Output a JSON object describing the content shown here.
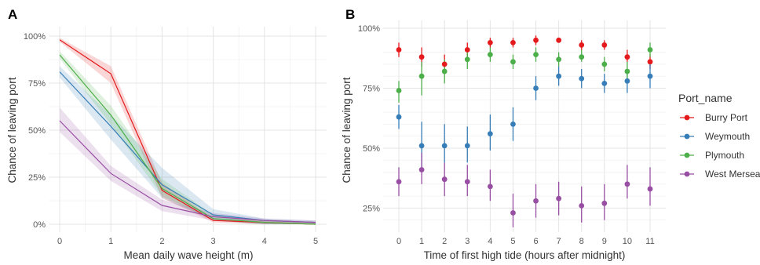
{
  "chart_data": [
    {
      "panel_label": "A",
      "type": "line",
      "xlabel": "Mean daily wave height (m)",
      "ylabel": "Chance of leaving port",
      "xlim": [
        0,
        5
      ],
      "ylim": [
        0,
        1
      ],
      "x_ticks": [
        "0",
        "1",
        "2",
        "3",
        "4",
        "5"
      ],
      "y_ticks": [
        "0%",
        "25%",
        "50%",
        "75%",
        "100%"
      ],
      "x": [
        0,
        1,
        2,
        3,
        4,
        5
      ],
      "grid": true,
      "ribbons": true,
      "series": [
        {
          "name": "Burry Port",
          "color": "#E41A1C",
          "values": [
            0.98,
            0.8,
            0.18,
            0.02,
            0.01,
            0.0
          ],
          "lower": [
            0.97,
            0.75,
            0.14,
            0.01,
            0.0,
            0.0
          ],
          "upper": [
            0.99,
            0.84,
            0.22,
            0.03,
            0.02,
            0.01
          ]
        },
        {
          "name": "Weymouth",
          "color": "#377EB8",
          "values": [
            0.81,
            0.52,
            0.21,
            0.05,
            0.02,
            0.01
          ],
          "lower": [
            0.78,
            0.45,
            0.14,
            0.02,
            0.0,
            0.0
          ],
          "upper": [
            0.84,
            0.58,
            0.3,
            0.08,
            0.03,
            0.02
          ]
        },
        {
          "name": "Plymouth",
          "color": "#4DAF4A",
          "values": [
            0.9,
            0.58,
            0.19,
            0.03,
            0.01,
            0.0
          ],
          "lower": [
            0.88,
            0.53,
            0.15,
            0.02,
            0.0,
            0.0
          ],
          "upper": [
            0.92,
            0.63,
            0.24,
            0.05,
            0.02,
            0.01
          ]
        },
        {
          "name": "West Mersea",
          "color": "#984EA3",
          "values": [
            0.55,
            0.27,
            0.1,
            0.04,
            0.02,
            0.01
          ],
          "lower": [
            0.49,
            0.23,
            0.07,
            0.02,
            0.0,
            0.0
          ],
          "upper": [
            0.62,
            0.31,
            0.13,
            0.06,
            0.03,
            0.02
          ]
        }
      ]
    },
    {
      "panel_label": "B",
      "type": "scatter",
      "xlabel": "Time of first high tide (hours after midnight)",
      "ylabel": "Chance of leaving port",
      "ylim": [
        0.15,
        1.0
      ],
      "categories": [
        "0",
        "1",
        "2",
        "3",
        "4",
        "5",
        "6",
        "7",
        "8",
        "9",
        "10",
        "11"
      ],
      "y_ticks": [
        "25%",
        "50%",
        "75%",
        "100%"
      ],
      "grid": true,
      "legend": {
        "title": "Port_name",
        "position": "right",
        "items": [
          "Burry Port",
          "Weymouth",
          "Plymouth",
          "West Mersea"
        ]
      },
      "series": [
        {
          "name": "Burry Port",
          "color": "#E41A1C",
          "values": [
            0.91,
            0.88,
            0.85,
            0.91,
            0.94,
            0.94,
            0.95,
            0.95,
            0.93,
            0.93,
            0.88,
            0.86
          ],
          "lower": [
            0.88,
            0.84,
            0.81,
            0.88,
            0.92,
            0.92,
            0.93,
            0.94,
            0.91,
            0.91,
            0.86,
            0.83
          ],
          "upper": [
            0.94,
            0.92,
            0.89,
            0.94,
            0.96,
            0.96,
            0.97,
            0.96,
            0.95,
            0.95,
            0.91,
            0.89
          ]
        },
        {
          "name": "Weymouth",
          "color": "#377EB8",
          "values": [
            0.63,
            0.51,
            0.51,
            0.51,
            0.56,
            0.6,
            0.75,
            0.8,
            0.79,
            0.77,
            0.78,
            0.8
          ],
          "lower": [
            0.58,
            0.42,
            0.44,
            0.44,
            0.49,
            0.53,
            0.7,
            0.76,
            0.75,
            0.73,
            0.73,
            0.75
          ],
          "upper": [
            0.68,
            0.61,
            0.6,
            0.59,
            0.64,
            0.67,
            0.8,
            0.84,
            0.83,
            0.81,
            0.82,
            0.85
          ]
        },
        {
          "name": "Plymouth",
          "color": "#4DAF4A",
          "values": [
            0.74,
            0.8,
            0.82,
            0.87,
            0.89,
            0.86,
            0.89,
            0.87,
            0.88,
            0.85,
            0.82,
            0.91
          ],
          "lower": [
            0.69,
            0.72,
            0.77,
            0.83,
            0.86,
            0.83,
            0.86,
            0.84,
            0.86,
            0.82,
            0.78,
            0.88
          ],
          "upper": [
            0.78,
            0.86,
            0.87,
            0.91,
            0.92,
            0.89,
            0.92,
            0.9,
            0.91,
            0.88,
            0.86,
            0.94
          ]
        },
        {
          "name": "West Mersea",
          "color": "#984EA3",
          "values": [
            0.36,
            0.41,
            0.37,
            0.36,
            0.34,
            0.23,
            0.28,
            0.29,
            0.26,
            0.27,
            0.35,
            0.33
          ],
          "lower": [
            0.3,
            0.35,
            0.3,
            0.3,
            0.28,
            0.17,
            0.21,
            0.22,
            0.19,
            0.2,
            0.29,
            0.26
          ],
          "upper": [
            0.42,
            0.48,
            0.44,
            0.43,
            0.41,
            0.31,
            0.35,
            0.36,
            0.34,
            0.35,
            0.43,
            0.42
          ]
        }
      ]
    }
  ]
}
